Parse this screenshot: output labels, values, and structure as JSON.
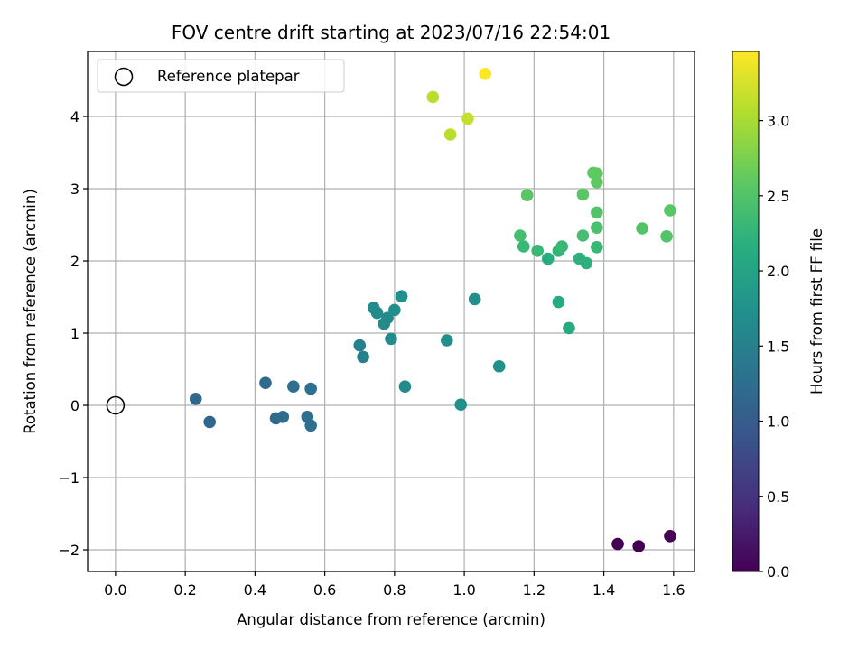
{
  "chart_data": {
    "type": "scatter",
    "title": "FOV centre drift starting at 2023/07/16 22:54:01",
    "xlabel": "Angular distance from reference (arcmin)",
    "ylabel": "Rotation from reference (arcmin)",
    "xlim": [
      -0.08,
      1.66
    ],
    "ylim": [
      -2.3,
      4.9
    ],
    "xticks": [
      0.0,
      0.2,
      0.4,
      0.6,
      0.8,
      1.0,
      1.2,
      1.4,
      1.6
    ],
    "xtick_labels": [
      "0.0",
      "0.2",
      "0.4",
      "0.6",
      "0.8",
      "1.0",
      "1.2",
      "1.4",
      "1.6"
    ],
    "yticks": [
      -2,
      -1,
      0,
      1,
      2,
      3,
      4
    ],
    "ytick_labels": [
      "−2",
      "−1",
      "0",
      "1",
      "2",
      "3",
      "4"
    ],
    "grid": true,
    "legend": {
      "position": "top-left",
      "entries": [
        "Reference platepar"
      ]
    },
    "colorbar": {
      "label": "Hours from first FF file",
      "colormap": "viridis",
      "range": [
        0.0,
        3.46
      ],
      "ticks": [
        0.0,
        0.5,
        1.0,
        1.5,
        2.0,
        2.5,
        3.0
      ],
      "tick_labels": [
        "0.0",
        "0.5",
        "1.0",
        "1.5",
        "2.0",
        "2.5",
        "3.0"
      ]
    },
    "reference_point": {
      "name": "Reference platepar",
      "x": 0.0,
      "y": 0.0
    },
    "points": [
      {
        "x": 1.44,
        "y": -1.92,
        "c": 0.0
      },
      {
        "x": 1.5,
        "y": -1.95,
        "c": 0.0
      },
      {
        "x": 1.59,
        "y": -1.81,
        "c": 0.0
      },
      {
        "x": 0.23,
        "y": 0.09,
        "c": 1.15
      },
      {
        "x": 0.27,
        "y": -0.23,
        "c": 1.15
      },
      {
        "x": 0.43,
        "y": 0.31,
        "c": 1.2
      },
      {
        "x": 0.46,
        "y": -0.18,
        "c": 1.2
      },
      {
        "x": 0.48,
        "y": -0.16,
        "c": 1.2
      },
      {
        "x": 0.51,
        "y": 0.26,
        "c": 1.25
      },
      {
        "x": 0.55,
        "y": -0.16,
        "c": 1.25
      },
      {
        "x": 0.56,
        "y": 0.23,
        "c": 1.25
      },
      {
        "x": 0.56,
        "y": -0.28,
        "c": 1.25
      },
      {
        "x": 0.7,
        "y": 0.83,
        "c": 1.5
      },
      {
        "x": 0.71,
        "y": 0.67,
        "c": 1.5
      },
      {
        "x": 0.74,
        "y": 1.35,
        "c": 1.65
      },
      {
        "x": 0.75,
        "y": 1.28,
        "c": 1.65
      },
      {
        "x": 0.77,
        "y": 1.13,
        "c": 1.65
      },
      {
        "x": 0.78,
        "y": 1.21,
        "c": 1.65
      },
      {
        "x": 0.79,
        "y": 0.92,
        "c": 1.65
      },
      {
        "x": 0.8,
        "y": 1.32,
        "c": 1.7
      },
      {
        "x": 0.82,
        "y": 1.51,
        "c": 1.75
      },
      {
        "x": 0.83,
        "y": 0.26,
        "c": 1.65
      },
      {
        "x": 0.95,
        "y": 0.9,
        "c": 1.7
      },
      {
        "x": 0.99,
        "y": 0.01,
        "c": 1.7
      },
      {
        "x": 1.03,
        "y": 1.47,
        "c": 1.7
      },
      {
        "x": 1.1,
        "y": 0.54,
        "c": 1.75
      },
      {
        "x": 1.27,
        "y": 1.43,
        "c": 2.1
      },
      {
        "x": 1.3,
        "y": 1.07,
        "c": 2.1
      },
      {
        "x": 1.16,
        "y": 2.35,
        "c": 2.4
      },
      {
        "x": 1.17,
        "y": 2.2,
        "c": 2.3
      },
      {
        "x": 1.18,
        "y": 2.91,
        "c": 2.55
      },
      {
        "x": 1.21,
        "y": 2.14,
        "c": 2.3
      },
      {
        "x": 1.24,
        "y": 2.03,
        "c": 2.15
      },
      {
        "x": 1.27,
        "y": 2.14,
        "c": 2.25
      },
      {
        "x": 1.28,
        "y": 2.2,
        "c": 2.3
      },
      {
        "x": 1.33,
        "y": 2.03,
        "c": 2.2
      },
      {
        "x": 1.35,
        "y": 1.97,
        "c": 2.2
      },
      {
        "x": 1.34,
        "y": 2.35,
        "c": 2.4
      },
      {
        "x": 1.34,
        "y": 2.92,
        "c": 2.55
      },
      {
        "x": 1.37,
        "y": 3.22,
        "c": 2.6
      },
      {
        "x": 1.38,
        "y": 3.21,
        "c": 2.6
      },
      {
        "x": 1.38,
        "y": 3.09,
        "c": 2.6
      },
      {
        "x": 1.38,
        "y": 2.67,
        "c": 2.5
      },
      {
        "x": 1.38,
        "y": 2.19,
        "c": 2.3
      },
      {
        "x": 1.38,
        "y": 2.46,
        "c": 2.45
      },
      {
        "x": 1.51,
        "y": 2.45,
        "c": 2.5
      },
      {
        "x": 1.58,
        "y": 2.34,
        "c": 2.5
      },
      {
        "x": 1.59,
        "y": 2.7,
        "c": 2.55
      },
      {
        "x": 0.91,
        "y": 4.27,
        "c": 3.1
      },
      {
        "x": 0.96,
        "y": 3.75,
        "c": 3.1
      },
      {
        "x": 1.01,
        "y": 3.97,
        "c": 3.15
      },
      {
        "x": 1.06,
        "y": 4.59,
        "c": 3.46
      }
    ]
  }
}
